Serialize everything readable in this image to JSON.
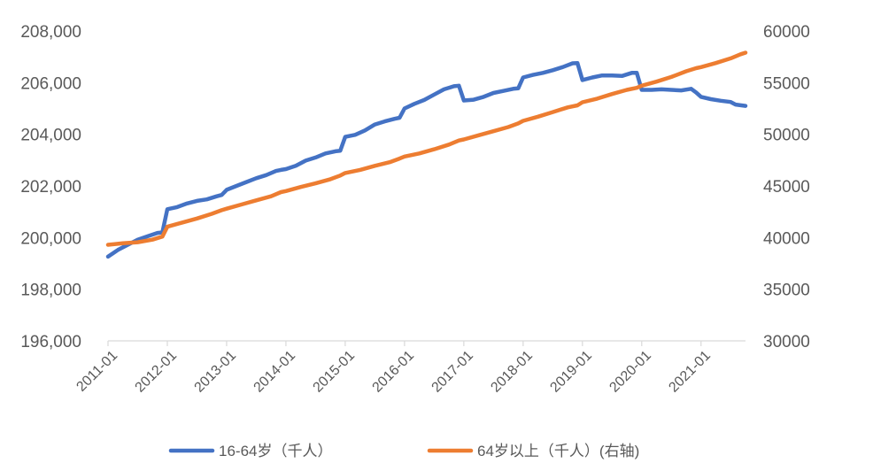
{
  "chart_data": {
    "type": "line",
    "x_labels": [
      "2011-01",
      "2012-01",
      "2013-01",
      "2014-01",
      "2015-01",
      "2016-01",
      "2017-01",
      "2018-01",
      "2019-01",
      "2020-01",
      "2021-01"
    ],
    "x_range": [
      "2011-01",
      "2021-10"
    ],
    "y_left": {
      "ylim": [
        196000,
        208000
      ],
      "ticks": [
        196000,
        198000,
        200000,
        202000,
        204000,
        206000,
        208000
      ],
      "tick_labels": [
        "196,000",
        "198,000",
        "200,000",
        "202,000",
        "204,000",
        "206,000",
        "208,000"
      ]
    },
    "y_right": {
      "ylim": [
        30000,
        60000
      ],
      "ticks": [
        30000,
        35000,
        40000,
        45000,
        50000,
        55000,
        60000
      ],
      "tick_labels": [
        "30000",
        "35000",
        "40000",
        "45000",
        "50000",
        "55000",
        "60000"
      ]
    },
    "grid": false,
    "legend_position": "bottom",
    "series": [
      {
        "name": "16-64岁（千人）",
        "axis": "left",
        "color": "#4472C4",
        "points": [
          [
            "2011-01",
            199260
          ],
          [
            "2011-03",
            199520
          ],
          [
            "2011-05",
            199720
          ],
          [
            "2011-07",
            199920
          ],
          [
            "2011-09",
            200050
          ],
          [
            "2011-11",
            200180
          ],
          [
            "2011-12",
            200200
          ],
          [
            "2012-01",
            201100
          ],
          [
            "2012-03",
            201180
          ],
          [
            "2012-05",
            201320
          ],
          [
            "2012-07",
            201420
          ],
          [
            "2012-09",
            201480
          ],
          [
            "2012-11",
            201600
          ],
          [
            "2012-12",
            201650
          ],
          [
            "2013-01",
            201850
          ],
          [
            "2013-03",
            202000
          ],
          [
            "2013-05",
            202150
          ],
          [
            "2013-07",
            202300
          ],
          [
            "2013-09",
            202420
          ],
          [
            "2013-11",
            202580
          ],
          [
            "2013-12",
            202620
          ],
          [
            "2014-01",
            202650
          ],
          [
            "2014-03",
            202780
          ],
          [
            "2014-05",
            202980
          ],
          [
            "2014-07",
            203100
          ],
          [
            "2014-09",
            203260
          ],
          [
            "2014-11",
            203340
          ],
          [
            "2014-12",
            203360
          ],
          [
            "2015-01",
            203900
          ],
          [
            "2015-03",
            203980
          ],
          [
            "2015-05",
            204150
          ],
          [
            "2015-07",
            204380
          ],
          [
            "2015-09",
            204500
          ],
          [
            "2015-11",
            204600
          ],
          [
            "2015-12",
            204640
          ],
          [
            "2016-01",
            205000
          ],
          [
            "2016-03",
            205180
          ],
          [
            "2016-05",
            205330
          ],
          [
            "2016-07",
            205540
          ],
          [
            "2016-09",
            205740
          ],
          [
            "2016-11",
            205860
          ],
          [
            "2016-12",
            205880
          ],
          [
            "2017-01",
            205310
          ],
          [
            "2017-03",
            205340
          ],
          [
            "2017-05",
            205450
          ],
          [
            "2017-07",
            205600
          ],
          [
            "2017-09",
            205680
          ],
          [
            "2017-11",
            205760
          ],
          [
            "2017-12",
            205780
          ],
          [
            "2018-01",
            206200
          ],
          [
            "2018-03",
            206300
          ],
          [
            "2018-05",
            206380
          ],
          [
            "2018-07",
            206480
          ],
          [
            "2018-09",
            206600
          ],
          [
            "2018-11",
            206750
          ],
          [
            "2018-12",
            206760
          ],
          [
            "2019-01",
            206100
          ],
          [
            "2019-03",
            206200
          ],
          [
            "2019-05",
            206280
          ],
          [
            "2019-07",
            206280
          ],
          [
            "2019-09",
            206260
          ],
          [
            "2019-11",
            206380
          ],
          [
            "2019-12",
            206380
          ],
          [
            "2020-01",
            205720
          ],
          [
            "2020-03",
            205720
          ],
          [
            "2020-05",
            205740
          ],
          [
            "2020-07",
            205720
          ],
          [
            "2020-09",
            205700
          ],
          [
            "2020-11",
            205760
          ],
          [
            "2020-12",
            205620
          ],
          [
            "2021-01",
            205450
          ],
          [
            "2021-03",
            205360
          ],
          [
            "2021-05",
            205300
          ],
          [
            "2021-07",
            205250
          ],
          [
            "2021-08",
            205150
          ],
          [
            "2021-10",
            205100
          ]
        ]
      },
      {
        "name": "64岁以上（千人）(右轴)",
        "axis": "right",
        "color": "#ED7D31",
        "points": [
          [
            "2011-01",
            39300
          ],
          [
            "2011-04",
            39450
          ],
          [
            "2011-07",
            39550
          ],
          [
            "2011-10",
            39800
          ],
          [
            "2011-12",
            40100
          ],
          [
            "2012-01",
            41050
          ],
          [
            "2012-04",
            41450
          ],
          [
            "2012-07",
            41850
          ],
          [
            "2012-10",
            42300
          ],
          [
            "2012-12",
            42650
          ],
          [
            "2013-01",
            42800
          ],
          [
            "2013-04",
            43200
          ],
          [
            "2013-07",
            43600
          ],
          [
            "2013-10",
            44000
          ],
          [
            "2013-12",
            44400
          ],
          [
            "2014-01",
            44500
          ],
          [
            "2014-04",
            44900
          ],
          [
            "2014-07",
            45250
          ],
          [
            "2014-10",
            45650
          ],
          [
            "2014-12",
            46000
          ],
          [
            "2015-01",
            46250
          ],
          [
            "2015-04",
            46550
          ],
          [
            "2015-07",
            46950
          ],
          [
            "2015-10",
            47300
          ],
          [
            "2015-12",
            47650
          ],
          [
            "2016-01",
            47850
          ],
          [
            "2016-04",
            48150
          ],
          [
            "2016-07",
            48550
          ],
          [
            "2016-10",
            49000
          ],
          [
            "2016-12",
            49400
          ],
          [
            "2017-01",
            49500
          ],
          [
            "2017-04",
            49900
          ],
          [
            "2017-07",
            50300
          ],
          [
            "2017-10",
            50700
          ],
          [
            "2017-12",
            51050
          ],
          [
            "2018-01",
            51300
          ],
          [
            "2018-04",
            51700
          ],
          [
            "2018-07",
            52150
          ],
          [
            "2018-10",
            52600
          ],
          [
            "2018-12",
            52800
          ],
          [
            "2019-01",
            53100
          ],
          [
            "2019-04",
            53450
          ],
          [
            "2019-07",
            53900
          ],
          [
            "2019-10",
            54300
          ],
          [
            "2019-12",
            54500
          ],
          [
            "2020-01",
            54700
          ],
          [
            "2020-04",
            55100
          ],
          [
            "2020-07",
            55550
          ],
          [
            "2020-10",
            56100
          ],
          [
            "2020-12",
            56400
          ],
          [
            "2021-01",
            56500
          ],
          [
            "2021-04",
            56900
          ],
          [
            "2021-07",
            57350
          ],
          [
            "2021-09",
            57750
          ],
          [
            "2021-10",
            57900
          ]
        ]
      }
    ]
  }
}
